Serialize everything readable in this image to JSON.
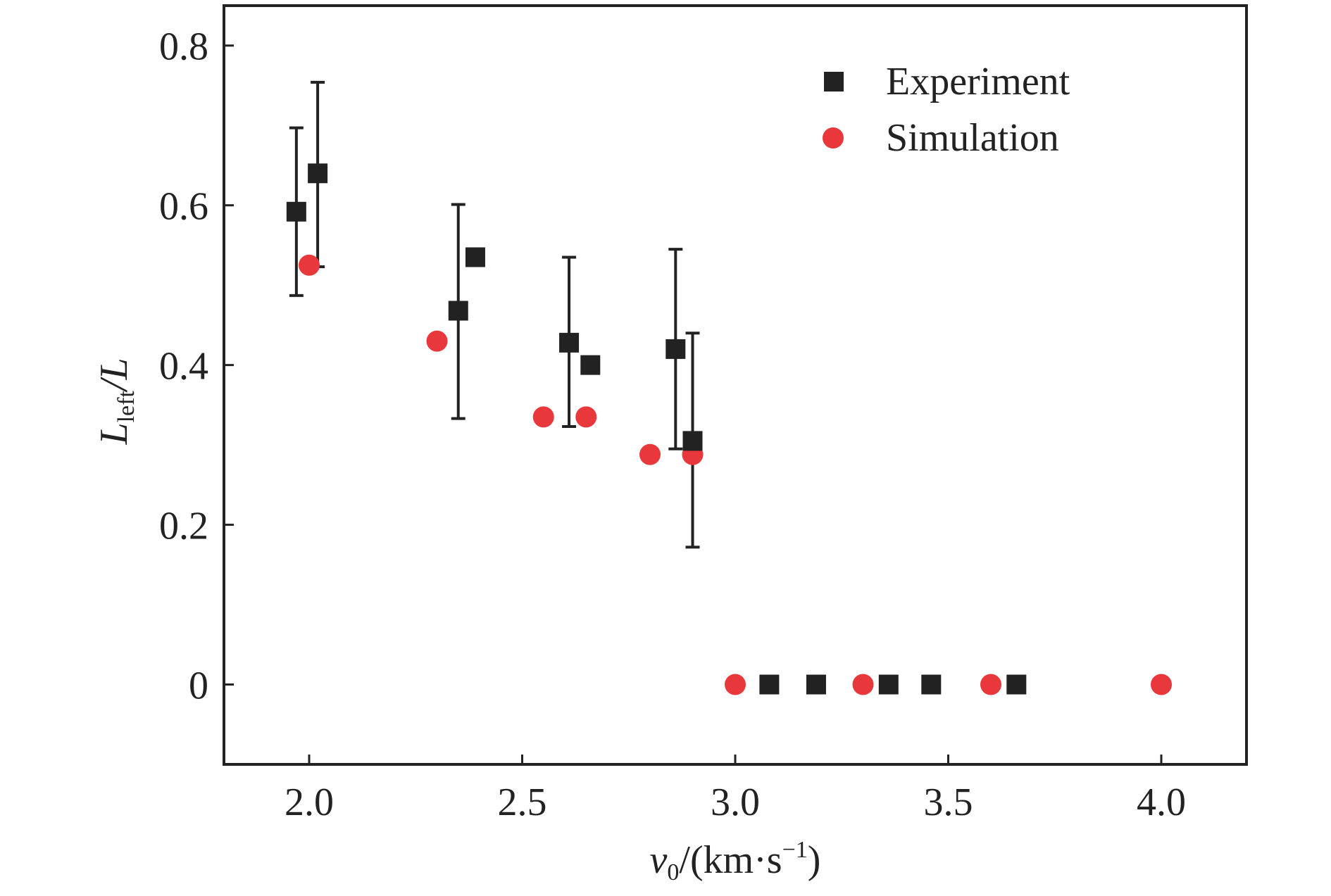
{
  "chart_data": {
    "type": "scatter",
    "xlim": [
      1.8,
      4.2
    ],
    "ylim": [
      -0.1,
      0.85
    ],
    "xticks": [
      2.0,
      2.5,
      3.0,
      3.5,
      4.0
    ],
    "xtick_labels": [
      "2.0",
      "2.5",
      "3.0",
      "3.5",
      "4.0"
    ],
    "yticks": [
      0,
      0.2,
      0.4,
      0.6,
      0.8
    ],
    "ytick_labels": [
      "0",
      "0.2",
      "0.4",
      "0.6",
      "0.8"
    ],
    "xlabel": {
      "main": "v",
      "sub": "0",
      "rest": "/(km·s",
      "sup": "−1",
      "close": ")"
    },
    "ylabel": {
      "main": "L",
      "sub": "left",
      "rest": "/L"
    },
    "grid": false,
    "legend_position": "top-right",
    "series": [
      {
        "name": "Experiment",
        "marker": "square",
        "color": "#222222",
        "points": [
          {
            "x": 1.97,
            "y": 0.592,
            "err_low": 0.487,
            "err_high": 0.697
          },
          {
            "x": 2.02,
            "y": 0.64,
            "err_low": 0.523,
            "err_high": 0.754
          },
          {
            "x": 2.35,
            "y": 0.468,
            "err_low": 0.333,
            "err_high": 0.601
          },
          {
            "x": 2.39,
            "y": 0.535
          },
          {
            "x": 2.61,
            "y": 0.428,
            "err_low": 0.323,
            "err_high": 0.535
          },
          {
            "x": 2.66,
            "y": 0.4
          },
          {
            "x": 2.86,
            "y": 0.42,
            "err_low": 0.295,
            "err_high": 0.545
          },
          {
            "x": 2.9,
            "y": 0.305,
            "err_low": 0.172,
            "err_high": 0.44
          },
          {
            "x": 3.08,
            "y": 0
          },
          {
            "x": 3.19,
            "y": 0
          },
          {
            "x": 3.36,
            "y": 0
          },
          {
            "x": 3.46,
            "y": 0
          },
          {
            "x": 3.66,
            "y": 0
          }
        ]
      },
      {
        "name": "Simulation",
        "marker": "circle",
        "color": "#e8383b",
        "points": [
          {
            "x": 2.0,
            "y": 0.525
          },
          {
            "x": 2.3,
            "y": 0.43
          },
          {
            "x": 2.55,
            "y": 0.335
          },
          {
            "x": 2.65,
            "y": 0.335
          },
          {
            "x": 2.8,
            "y": 0.288
          },
          {
            "x": 2.9,
            "y": 0.288
          },
          {
            "x": 3.0,
            "y": 0
          },
          {
            "x": 3.3,
            "y": 0
          },
          {
            "x": 3.6,
            "y": 0
          },
          {
            "x": 4.0,
            "y": 0
          }
        ]
      }
    ]
  }
}
